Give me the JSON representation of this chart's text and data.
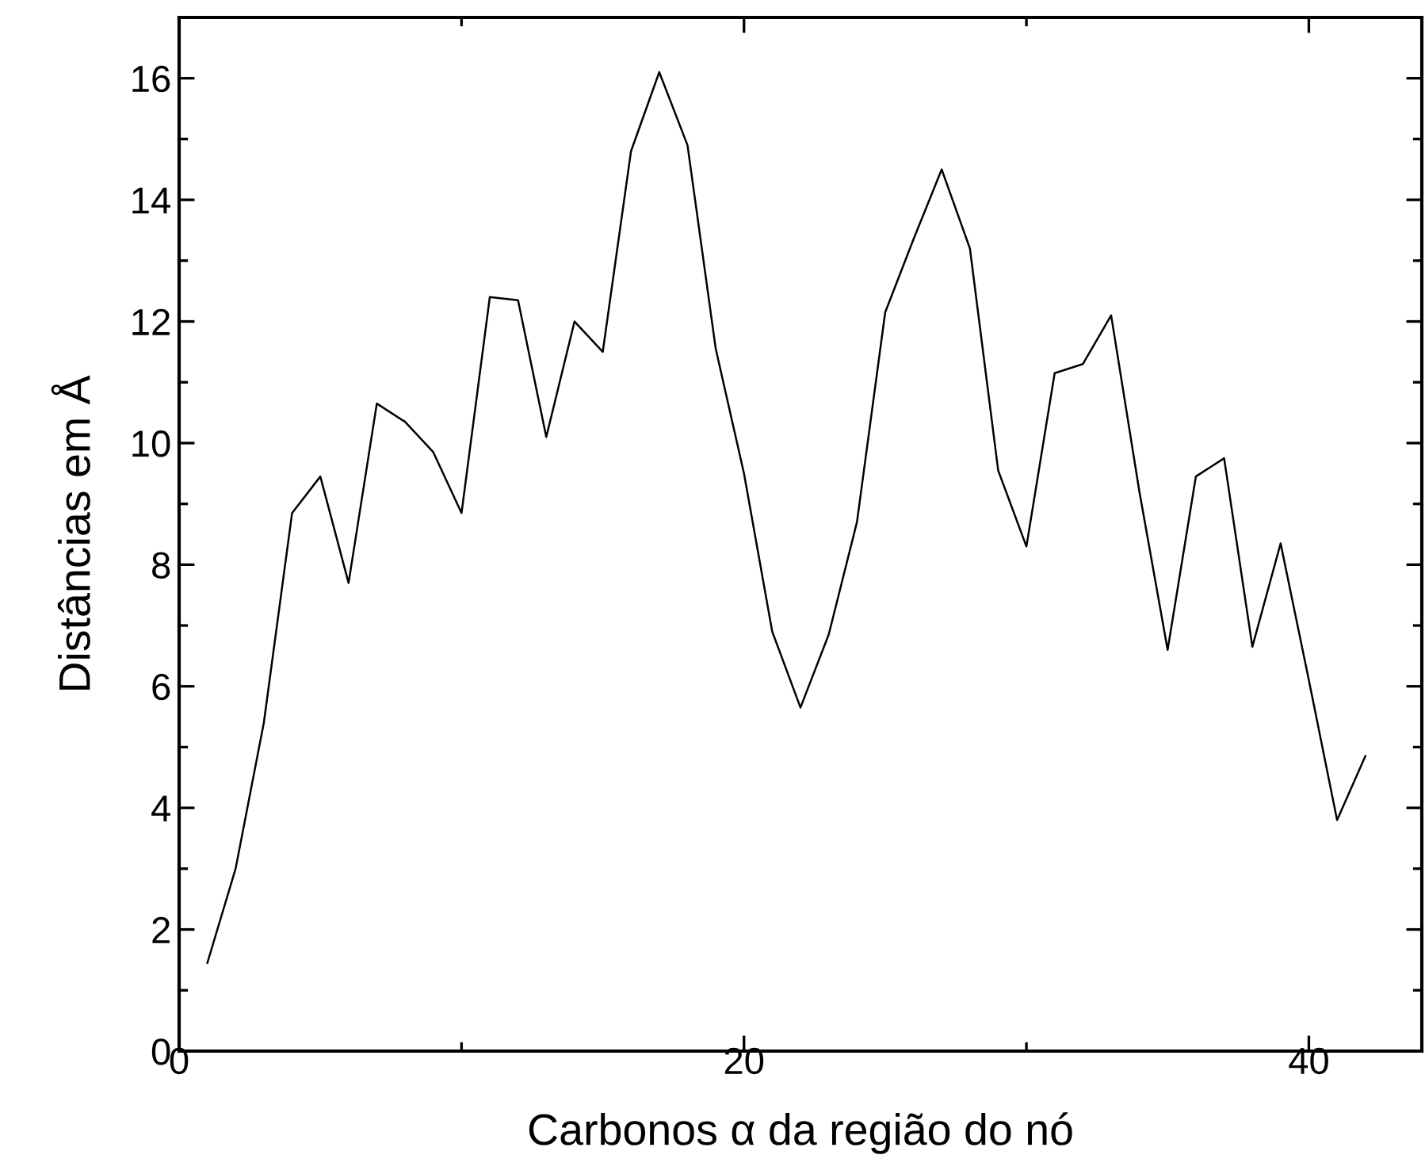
{
  "chart_data": {
    "type": "line",
    "xlabel": "Carbonos α da região do nó",
    "ylabel": "Distâncias em Å",
    "x": [
      1,
      2,
      3,
      4,
      5,
      6,
      7,
      8,
      9,
      10,
      11,
      12,
      13,
      14,
      15,
      16,
      17,
      18,
      19,
      20,
      21,
      22,
      23,
      24,
      25,
      26,
      27,
      28,
      29,
      30,
      31,
      32,
      33,
      34,
      35,
      36,
      37,
      38,
      39,
      40,
      41,
      42
    ],
    "series": [
      {
        "color": "#000000",
        "values": [
          1.45,
          3.0,
          5.4,
          8.85,
          9.45,
          7.7,
          10.65,
          10.35,
          9.85,
          8.85,
          12.4,
          12.35,
          10.1,
          12.0,
          11.5,
          14.8,
          16.1,
          14.9,
          11.55,
          9.5,
          6.9,
          5.65,
          6.85,
          8.7,
          12.15,
          13.35,
          14.5,
          13.2,
          9.55,
          8.3,
          11.15,
          11.3,
          12.1,
          9.2,
          6.6,
          9.45,
          9.75,
          6.65,
          8.35,
          6.1,
          3.8,
          4.85
        ]
      }
    ],
    "xlim": [
      0,
      44
    ],
    "ylim": [
      0,
      17
    ],
    "xticks": [
      0,
      20,
      40
    ],
    "yticks": [
      0,
      2,
      4,
      6,
      8,
      10,
      12,
      14,
      16
    ],
    "grid": false,
    "legend": false,
    "marker": "none",
    "line_style": "solid"
  }
}
